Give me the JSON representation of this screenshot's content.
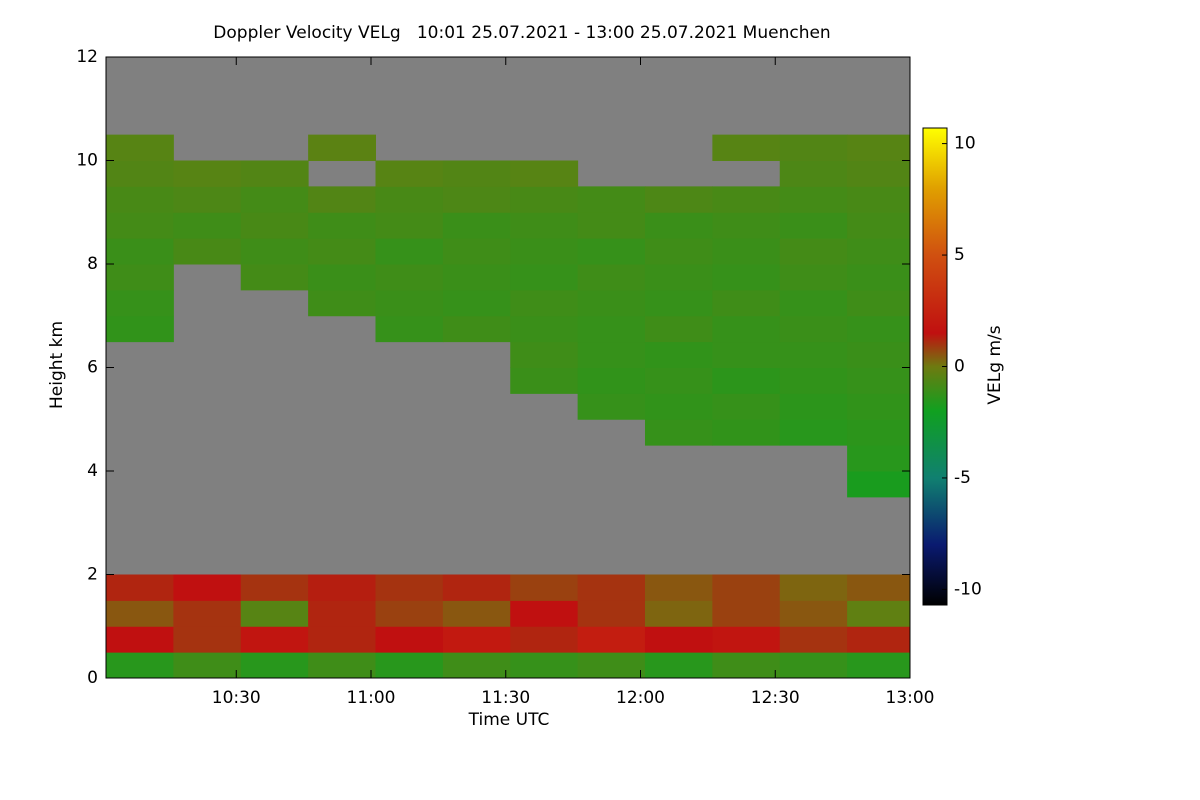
{
  "chart_data": {
    "type": "heatmap",
    "title": "Doppler Velocity VELg   10:01 25.07.2021 - 13:00 25.07.2021 Muenchen",
    "x_label": "Time UTC",
    "y_label": "Height km",
    "colorbar_label": "VELg m/s",
    "x": [
      "10:01",
      "10:16",
      "10:31",
      "10:46",
      "11:01",
      "11:16",
      "11:31",
      "11:46",
      "12:01",
      "12:16",
      "12:31",
      "12:46",
      "13:00"
    ],
    "y": [
      0,
      0.5,
      1,
      1.5,
      2,
      2.5,
      3,
      3.5,
      4,
      4.5,
      5,
      5.5,
      6,
      6.5,
      7,
      7.5,
      8,
      8.5,
      9,
      9.5,
      10,
      10.5,
      11,
      11.5,
      12
    ],
    "z": [
      [
        -1.5,
        -1,
        -1.5,
        -1,
        -1.5,
        -1,
        -1.2,
        -1,
        -1.5,
        -1,
        -1.2,
        -1.5
      ],
      [
        1.5,
        1,
        1.8,
        1.2,
        1.5,
        2,
        1.2,
        2.2,
        1.5,
        1.8,
        1,
        1.2
      ],
      [
        0.5,
        1,
        -0.5,
        1.2,
        0.8,
        0.5,
        1.5,
        1,
        0.3,
        0.8,
        0.5,
        -0.3
      ],
      [
        1.2,
        1.5,
        1,
        1.3,
        1,
        1.2,
        0.8,
        1,
        0.5,
        0.8,
        0.3,
        0.5
      ],
      [
        null,
        null,
        null,
        null,
        null,
        null,
        null,
        null,
        null,
        null,
        null,
        null
      ],
      [
        null,
        null,
        null,
        null,
        null,
        null,
        null,
        null,
        null,
        null,
        null,
        null
      ],
      [
        null,
        null,
        null,
        null,
        null,
        null,
        null,
        null,
        null,
        null,
        null,
        null
      ],
      [
        null,
        null,
        null,
        null,
        null,
        null,
        null,
        null,
        null,
        null,
        null,
        -1.8
      ],
      [
        null,
        null,
        null,
        null,
        null,
        null,
        null,
        null,
        null,
        null,
        null,
        -1.5
      ],
      [
        null,
        null,
        null,
        null,
        null,
        null,
        null,
        null,
        -1.2,
        -1.3,
        -1.5,
        -1.4
      ],
      [
        null,
        null,
        null,
        null,
        null,
        null,
        null,
        -1.2,
        -1.3,
        -1.2,
        -1.4,
        -1.3
      ],
      [
        null,
        null,
        null,
        null,
        null,
        null,
        -1.1,
        -1.3,
        -1.2,
        -1.4,
        -1.3,
        -1.2
      ],
      [
        null,
        null,
        null,
        null,
        null,
        null,
        -1,
        -1.2,
        -1.3,
        -1.2,
        -1.2,
        -1.1
      ],
      [
        -1.3,
        null,
        null,
        null,
        -1.2,
        -1,
        -1.1,
        -1.2,
        -1,
        -1.2,
        -1.1,
        -1.2
      ],
      [
        -1.2,
        null,
        null,
        -1,
        -1.1,
        -1.2,
        -1,
        -1.1,
        -1.2,
        -1,
        -1.2,
        -1
      ],
      [
        -1,
        null,
        -0.9,
        -1.1,
        -1,
        -1.1,
        -1.2,
        -1,
        -1.1,
        -1.2,
        -1,
        -1.1
      ],
      [
        -1.1,
        -0.8,
        -1,
        -0.9,
        -1.2,
        -1,
        -1.1,
        -1.2,
        -1,
        -1.1,
        -0.9,
        -1
      ],
      [
        -0.9,
        -1,
        -0.8,
        -1,
        -0.9,
        -1.1,
        -1,
        -0.9,
        -1.1,
        -1,
        -1.1,
        -0.9
      ],
      [
        -0.8,
        -0.7,
        -0.9,
        -0.6,
        -0.8,
        -0.7,
        -0.8,
        -0.9,
        -0.7,
        -0.8,
        -0.9,
        -0.8
      ],
      [
        -0.6,
        -0.5,
        -0.6,
        null,
        -0.5,
        -0.6,
        -0.5,
        null,
        null,
        null,
        -0.7,
        -0.6
      ],
      [
        -0.5,
        null,
        null,
        -0.4,
        null,
        null,
        null,
        null,
        null,
        -0.5,
        -0.6,
        -0.5
      ],
      [
        null,
        null,
        null,
        null,
        null,
        null,
        null,
        null,
        null,
        null,
        null,
        null
      ],
      [
        null,
        null,
        null,
        null,
        null,
        null,
        null,
        null,
        null,
        null,
        null,
        null
      ],
      [
        null,
        null,
        null,
        null,
        null,
        null,
        null,
        null,
        null,
        null,
        null,
        null
      ]
    ],
    "nan_color": "#808080",
    "colorscale": [
      [
        -10.7,
        "#000000"
      ],
      [
        -8,
        "#0a1a70"
      ],
      [
        -5,
        "#108070"
      ],
      [
        -2,
        "#10a020"
      ],
      [
        0,
        "#6e7a10"
      ],
      [
        1.5,
        "#c01010"
      ],
      [
        5,
        "#d05010"
      ],
      [
        8,
        "#e0a000"
      ],
      [
        10.7,
        "#ffff00"
      ]
    ],
    "xlim": [
      "10:01",
      "13:00"
    ],
    "xticks": [
      "10:30",
      "11:00",
      "11:30",
      "12:00",
      "12:30",
      "13:00"
    ],
    "ylim": [
      0,
      12
    ],
    "yticks": [
      0,
      2,
      4,
      6,
      8,
      10,
      12
    ],
    "zlim": [
      -10.7,
      10.7
    ],
    "zticks": [
      -10,
      -5,
      0,
      5,
      10
    ]
  }
}
